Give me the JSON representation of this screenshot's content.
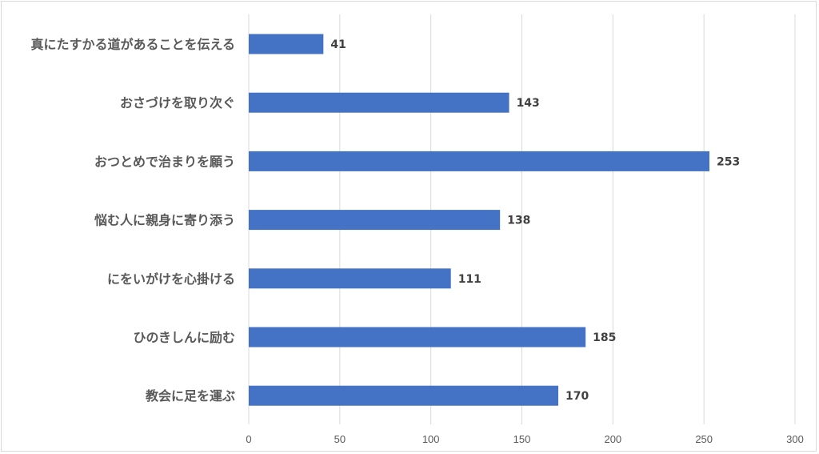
{
  "chart_data": {
    "type": "bar",
    "orientation": "horizontal",
    "categories": [
      "真にたすかる道があることを伝える",
      "おさづけを取り次ぐ",
      "おつとめで治まりを願う",
      "悩む人に親身に寄り添う",
      "にをいがけを心掛ける",
      "ひのきしんに励む",
      "教会に足を運ぶ"
    ],
    "values": [
      41,
      143,
      253,
      138,
      111,
      185,
      170
    ],
    "xlim": [
      0,
      300
    ],
    "ticks": [
      "0",
      "50",
      "100",
      "150",
      "200",
      "250",
      "300"
    ],
    "grid": true,
    "bar_color": "#4472c4",
    "gridline_color": "#d9d9d9",
    "data_labels": true
  }
}
